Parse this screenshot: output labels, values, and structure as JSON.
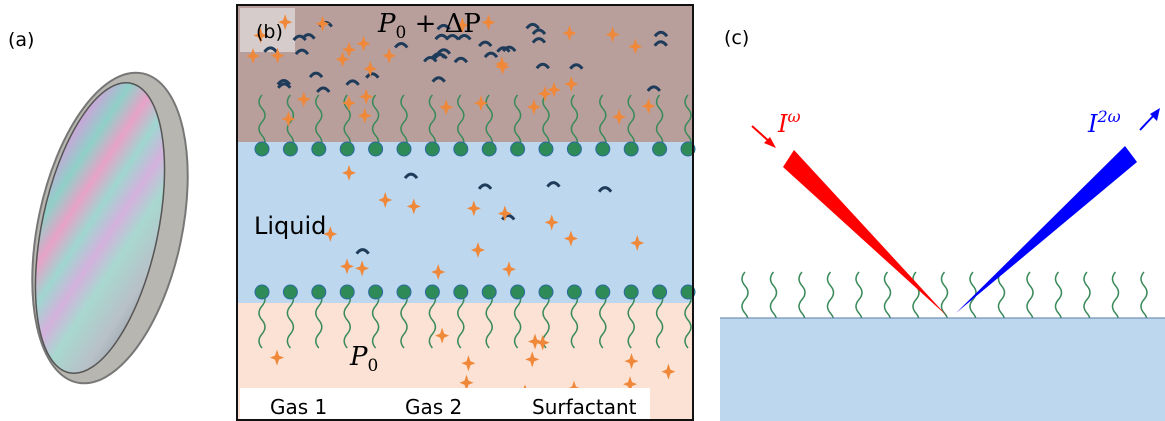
{
  "panel_a": {
    "label": "(a)"
  },
  "panel_b": {
    "label": "(b)",
    "top_pressure": {
      "base": "P",
      "sub": "0",
      "rest": " + ΔP"
    },
    "liquid_label": "Liquid",
    "bottom_pressure": {
      "base": "P",
      "sub": "0"
    },
    "legend": [
      "Gas 1",
      "Gas 2",
      "Surfactant"
    ]
  },
  "panel_c": {
    "label": "(c)",
    "incident": {
      "base": "I",
      "sup": "ω"
    },
    "reflected": {
      "base": "I",
      "sup": "2ω"
    }
  }
}
